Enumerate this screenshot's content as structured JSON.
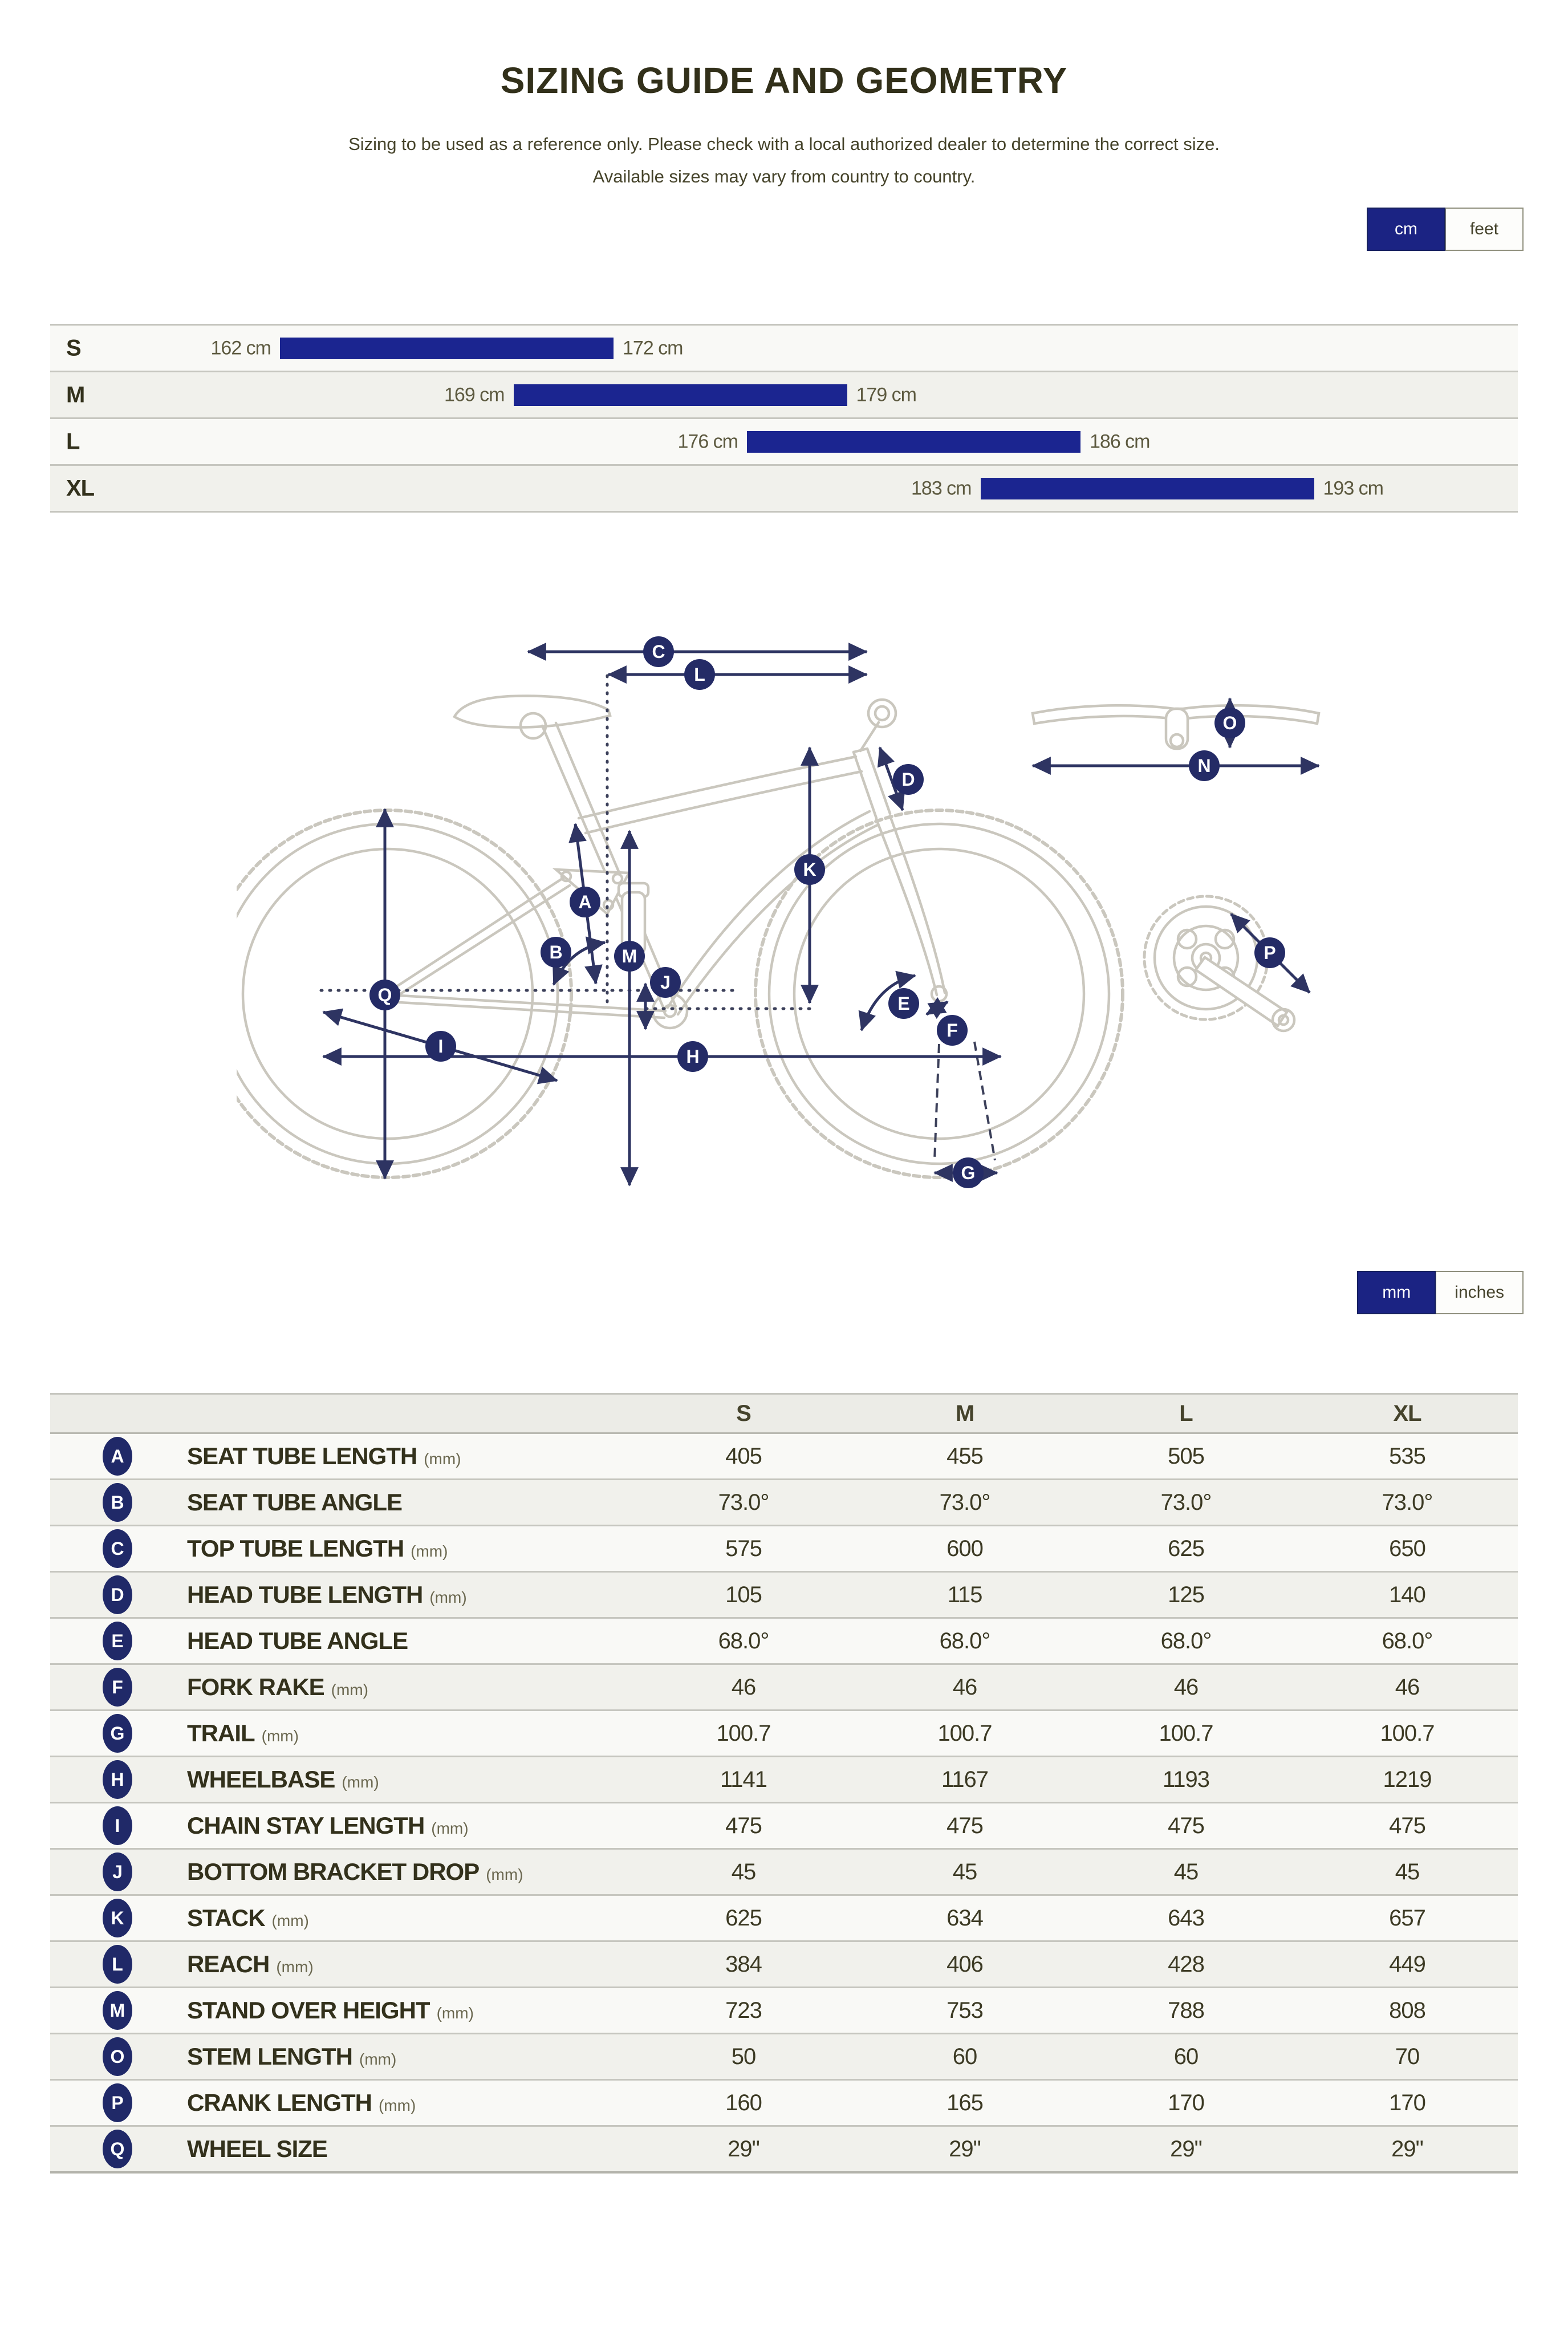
{
  "header": {
    "title": "SIZING GUIDE AND GEOMETRY",
    "subtitle_line1": "Sizing to be used as a reference only. Please check with a local authorized dealer to determine the correct size.",
    "subtitle_line2": "Available sizes may vary from country to country."
  },
  "unit_toggles": {
    "height": {
      "options": [
        "cm",
        "feet"
      ],
      "selected": "cm"
    },
    "geometry": {
      "options": [
        "mm",
        "inches"
      ],
      "selected": "mm"
    }
  },
  "colors": {
    "accent_navy": "#1b2590",
    "toggle_active_navy": "#1b2383",
    "badge_navy": "#202968",
    "arrow_navy": "#2e3462",
    "bike_outline_gray": "#cac7be",
    "row_light": "#f9f9f6",
    "row_gray": "#f1f1ec",
    "text_dark_olive": "#33311c"
  },
  "sizing_chart": {
    "type": "bar",
    "unit": "cm",
    "rows": [
      {
        "size": "S",
        "min_cm": 162,
        "max_cm": 172,
        "min_label": "162 cm",
        "max_label": "172 cm"
      },
      {
        "size": "M",
        "min_cm": 169,
        "max_cm": 179,
        "min_label": "169 cm",
        "max_label": "179 cm"
      },
      {
        "size": "L",
        "min_cm": 176,
        "max_cm": 186,
        "min_label": "176 cm",
        "max_label": "186 cm"
      },
      {
        "size": "XL",
        "min_cm": 183,
        "max_cm": 193,
        "min_label": "183 cm",
        "max_label": "193 cm"
      }
    ]
  },
  "diagram": {
    "badges": [
      "C",
      "L",
      "D",
      "K",
      "A",
      "B",
      "M",
      "J",
      "Q",
      "E",
      "I",
      "F",
      "H",
      "G",
      "O",
      "N",
      "P"
    ]
  },
  "geometry_table": {
    "columns": [
      "S",
      "M",
      "L",
      "XL"
    ],
    "rows": [
      {
        "letter": "A",
        "label": "SEAT TUBE LENGTH",
        "unit": "(mm)",
        "values": [
          "405",
          "455",
          "505",
          "535"
        ]
      },
      {
        "letter": "B",
        "label": "SEAT TUBE ANGLE",
        "unit": "",
        "values": [
          "73.0°",
          "73.0°",
          "73.0°",
          "73.0°"
        ]
      },
      {
        "letter": "C",
        "label": "TOP TUBE LENGTH",
        "unit": "(mm)",
        "values": [
          "575",
          "600",
          "625",
          "650"
        ]
      },
      {
        "letter": "D",
        "label": "HEAD TUBE LENGTH",
        "unit": "(mm)",
        "values": [
          "105",
          "115",
          "125",
          "140"
        ]
      },
      {
        "letter": "E",
        "label": "HEAD TUBE ANGLE",
        "unit": "",
        "values": [
          "68.0°",
          "68.0°",
          "68.0°",
          "68.0°"
        ]
      },
      {
        "letter": "F",
        "label": "FORK RAKE",
        "unit": "(mm)",
        "values": [
          "46",
          "46",
          "46",
          "46"
        ]
      },
      {
        "letter": "G",
        "label": "TRAIL",
        "unit": "(mm)",
        "values": [
          "100.7",
          "100.7",
          "100.7",
          "100.7"
        ]
      },
      {
        "letter": "H",
        "label": "WHEELBASE",
        "unit": "(mm)",
        "values": [
          "1141",
          "1167",
          "1193",
          "1219"
        ]
      },
      {
        "letter": "I",
        "label": "CHAIN STAY LENGTH",
        "unit": "(mm)",
        "values": [
          "475",
          "475",
          "475",
          "475"
        ]
      },
      {
        "letter": "J",
        "label": "BOTTOM BRACKET DROP",
        "unit": "(mm)",
        "values": [
          "45",
          "45",
          "45",
          "45"
        ]
      },
      {
        "letter": "K",
        "label": "STACK",
        "unit": "(mm)",
        "values": [
          "625",
          "634",
          "643",
          "657"
        ]
      },
      {
        "letter": "L",
        "label": "REACH",
        "unit": "(mm)",
        "values": [
          "384",
          "406",
          "428",
          "449"
        ]
      },
      {
        "letter": "M",
        "label": "STAND OVER HEIGHT",
        "unit": "(mm)",
        "values": [
          "723",
          "753",
          "788",
          "808"
        ]
      },
      {
        "letter": "O",
        "label": "STEM LENGTH",
        "unit": "(mm)",
        "values": [
          "50",
          "60",
          "60",
          "70"
        ]
      },
      {
        "letter": "P",
        "label": "CRANK LENGTH",
        "unit": "(mm)",
        "values": [
          "160",
          "165",
          "170",
          "170"
        ]
      },
      {
        "letter": "Q",
        "label": "WHEEL SIZE",
        "unit": "",
        "values": [
          "29\"",
          "29\"",
          "29\"",
          "29\""
        ]
      }
    ]
  }
}
